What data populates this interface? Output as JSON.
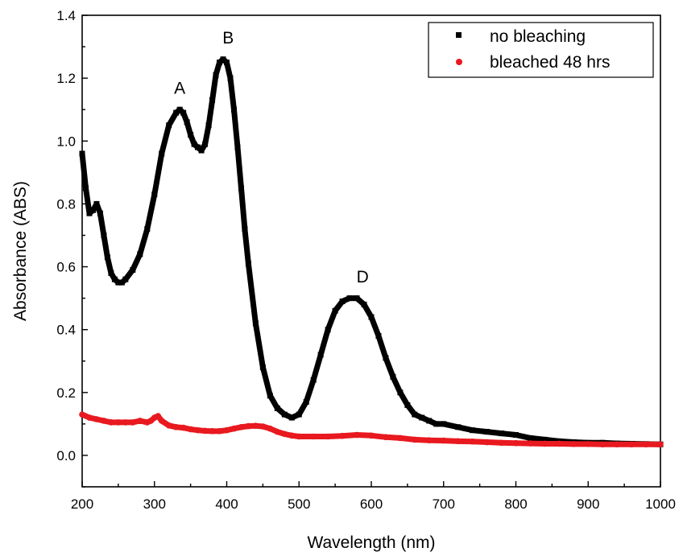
{
  "chart_data": {
    "type": "scatter",
    "title": "",
    "xlabel": "Wavelength (nm)",
    "ylabel": "Absorbance (ABS)",
    "xlim": [
      200,
      1000
    ],
    "ylim": [
      -0.1,
      1.4
    ],
    "xticks": [
      200,
      300,
      400,
      500,
      600,
      700,
      800,
      900,
      1000
    ],
    "yticks": [
      0.0,
      0.2,
      0.4,
      0.6,
      0.8,
      1.0,
      1.2,
      1.4
    ],
    "ytick_labels": [
      "0.0",
      "0.2",
      "0.4",
      "0.6",
      "0.8",
      "1.0",
      "1.2",
      "1.4"
    ],
    "grid": false,
    "legend_position": "top-right",
    "series": [
      {
        "name": "no bleaching",
        "color": "#000000",
        "marker": "square",
        "x": [
          200,
          205,
          210,
          215,
          220,
          225,
          230,
          235,
          240,
          245,
          250,
          255,
          260,
          270,
          280,
          290,
          300,
          310,
          320,
          330,
          335,
          340,
          345,
          350,
          355,
          360,
          365,
          370,
          375,
          380,
          385,
          390,
          395,
          400,
          405,
          410,
          415,
          420,
          425,
          430,
          440,
          450,
          460,
          470,
          480,
          490,
          500,
          510,
          520,
          530,
          540,
          550,
          560,
          570,
          580,
          590,
          600,
          610,
          620,
          630,
          640,
          650,
          660,
          670,
          680,
          690,
          700,
          720,
          740,
          760,
          780,
          800,
          820,
          840,
          860,
          880,
          900,
          920,
          940,
          960,
          980,
          1000
        ],
        "y": [
          0.96,
          0.85,
          0.77,
          0.78,
          0.8,
          0.77,
          0.7,
          0.63,
          0.58,
          0.56,
          0.55,
          0.55,
          0.56,
          0.59,
          0.64,
          0.72,
          0.83,
          0.96,
          1.05,
          1.09,
          1.1,
          1.09,
          1.06,
          1.02,
          0.99,
          0.98,
          0.97,
          0.99,
          1.05,
          1.13,
          1.21,
          1.25,
          1.26,
          1.25,
          1.2,
          1.1,
          0.98,
          0.85,
          0.72,
          0.61,
          0.42,
          0.28,
          0.19,
          0.15,
          0.13,
          0.12,
          0.13,
          0.17,
          0.24,
          0.32,
          0.4,
          0.46,
          0.49,
          0.5,
          0.5,
          0.48,
          0.44,
          0.38,
          0.31,
          0.25,
          0.2,
          0.16,
          0.13,
          0.12,
          0.11,
          0.1,
          0.1,
          0.09,
          0.08,
          0.075,
          0.07,
          0.065,
          0.055,
          0.05,
          0.045,
          0.042,
          0.04,
          0.04,
          0.038,
          0.037,
          0.036,
          0.035
        ]
      },
      {
        "name": "bleached 48 hrs",
        "color": "#e8191f",
        "marker": "circle",
        "x": [
          200,
          210,
          220,
          230,
          240,
          250,
          260,
          270,
          280,
          290,
          295,
          300,
          305,
          310,
          320,
          330,
          340,
          350,
          360,
          370,
          380,
          390,
          400,
          410,
          420,
          430,
          440,
          450,
          460,
          470,
          480,
          490,
          500,
          520,
          540,
          560,
          580,
          600,
          620,
          640,
          660,
          680,
          700,
          720,
          740,
          760,
          780,
          800,
          820,
          840,
          860,
          880,
          900,
          920,
          940,
          960,
          980,
          1000
        ],
        "y": [
          0.13,
          0.12,
          0.115,
          0.11,
          0.105,
          0.105,
          0.105,
          0.105,
          0.11,
          0.105,
          0.11,
          0.12,
          0.125,
          0.11,
          0.095,
          0.09,
          0.088,
          0.083,
          0.08,
          0.078,
          0.077,
          0.077,
          0.08,
          0.085,
          0.09,
          0.093,
          0.094,
          0.092,
          0.085,
          0.075,
          0.068,
          0.063,
          0.06,
          0.06,
          0.06,
          0.062,
          0.065,
          0.063,
          0.058,
          0.055,
          0.05,
          0.048,
          0.047,
          0.045,
          0.044,
          0.042,
          0.04,
          0.039,
          0.038,
          0.037,
          0.037,
          0.036,
          0.036,
          0.035,
          0.035,
          0.035,
          0.035,
          0.035
        ]
      }
    ],
    "annotations": [
      {
        "text": "A",
        "x": 335,
        "y": 1.15
      },
      {
        "text": "B",
        "x": 402,
        "y": 1.31
      },
      {
        "text": "D",
        "x": 588,
        "y": 0.55
      }
    ]
  }
}
